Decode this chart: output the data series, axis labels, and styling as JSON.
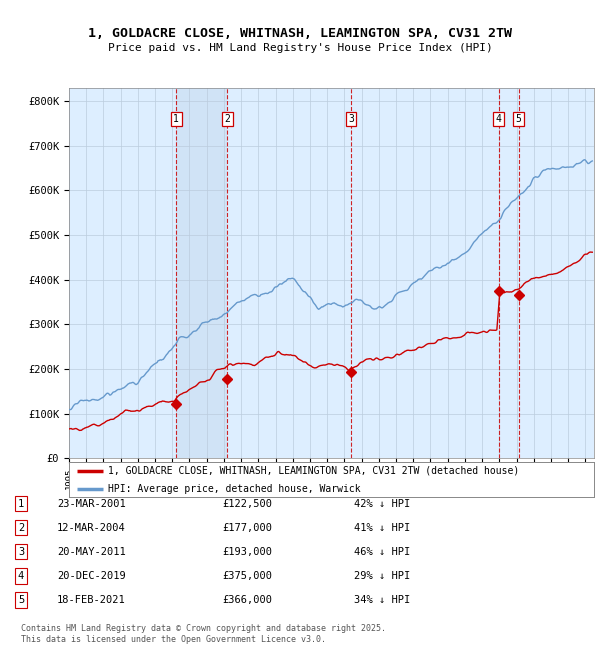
{
  "title_line1": "1, GOLDACRE CLOSE, WHITNASH, LEAMINGTON SPA, CV31 2TW",
  "title_line2": "Price paid vs. HM Land Registry's House Price Index (HPI)",
  "ylabel_ticks": [
    "£0",
    "£100K",
    "£200K",
    "£300K",
    "£400K",
    "£500K",
    "£600K",
    "£700K",
    "£800K"
  ],
  "ytick_values": [
    0,
    100000,
    200000,
    300000,
    400000,
    500000,
    600000,
    700000,
    800000
  ],
  "ylim": [
    0,
    830000
  ],
  "xlim_start": 1995.0,
  "xlim_end": 2025.5,
  "sale_dates": [
    2001.23,
    2004.19,
    2011.38,
    2019.97,
    2021.12
  ],
  "sale_prices": [
    122500,
    177000,
    193000,
    375000,
    366000
  ],
  "sale_labels": [
    "1",
    "2",
    "3",
    "4",
    "5"
  ],
  "legend_line1": "1, GOLDACRE CLOSE, WHITNASH, LEAMINGTON SPA, CV31 2TW (detached house)",
  "legend_line2": "HPI: Average price, detached house, Warwick",
  "table_data": [
    [
      "1",
      "23-MAR-2001",
      "£122,500",
      "42% ↓ HPI"
    ],
    [
      "2",
      "12-MAR-2004",
      "£177,000",
      "41% ↓ HPI"
    ],
    [
      "3",
      "20-MAY-2011",
      "£193,000",
      "46% ↓ HPI"
    ],
    [
      "4",
      "20-DEC-2019",
      "£375,000",
      "29% ↓ HPI"
    ],
    [
      "5",
      "18-FEB-2021",
      "£366,000",
      "34% ↓ HPI"
    ]
  ],
  "footnote": "Contains HM Land Registry data © Crown copyright and database right 2025.\nThis data is licensed under the Open Government Licence v3.0.",
  "line_color_red": "#cc0000",
  "line_color_blue": "#6699cc",
  "plot_bg": "#ddeeff",
  "band_bg": "#c8ddf0",
  "dashed_line_color": "#cc0000",
  "grid_color": "#bbccdd"
}
